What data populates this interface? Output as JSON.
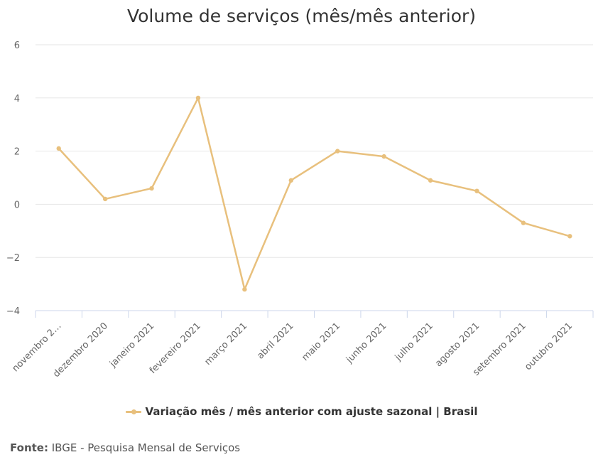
{
  "chart_data": {
    "type": "line",
    "title": "Volume de serviços (mês/mês anterior)",
    "categories": [
      "novembro 2…",
      "dezembro 2020",
      "janeiro 2021",
      "fevereiro 2021",
      "março 2021",
      "abril 2021",
      "maio 2021",
      "junho 2021",
      "julho 2021",
      "agosto 2021",
      "setembro 2021",
      "outubro 2021"
    ],
    "series": [
      {
        "name": "Variação mês / mês anterior com ajuste sazonal | Brasil",
        "color": "#e8c07d",
        "values": [
          2.1,
          0.2,
          0.6,
          4.0,
          -3.2,
          0.9,
          2.0,
          1.8,
          0.9,
          0.5,
          -0.7,
          -1.2
        ]
      }
    ],
    "ylim": [
      -4,
      6
    ],
    "yticks": [
      "6",
      "4",
      "2",
      "0",
      "−2",
      "−4"
    ],
    "xlabel": "",
    "ylabel": "",
    "grid": true,
    "legend_position": "bottom"
  },
  "footer": {
    "source_label": "Fonte:",
    "source_text": "IBGE - Pesquisa Mensal de Serviços"
  }
}
